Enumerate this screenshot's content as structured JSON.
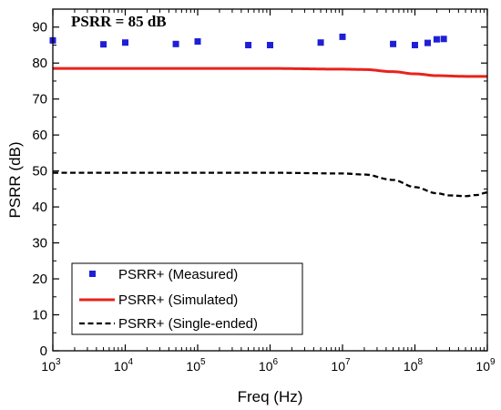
{
  "chart_data": {
    "type": "line",
    "xlabel": "Freq (Hz)",
    "ylabel": "PSRR (dB)",
    "xscale": "log",
    "xlim": [
      1000,
      1000000000
    ],
    "ylim": [
      0,
      95
    ],
    "x_ticks": [
      {
        "value": 1000,
        "base": "10",
        "exp": "3"
      },
      {
        "value": 10000,
        "base": "10",
        "exp": "4"
      },
      {
        "value": 100000,
        "base": "10",
        "exp": "5"
      },
      {
        "value": 1000000,
        "base": "10",
        "exp": "6"
      },
      {
        "value": 10000000,
        "base": "10",
        "exp": "7"
      },
      {
        "value": 100000000,
        "base": "10",
        "exp": "8"
      },
      {
        "value": 1000000000,
        "base": "10",
        "exp": "9"
      }
    ],
    "y_ticks": [
      {
        "value": 0,
        "label": "0"
      },
      {
        "value": 10,
        "label": "10"
      },
      {
        "value": 20,
        "label": "20"
      },
      {
        "value": 30,
        "label": "30"
      },
      {
        "value": 40,
        "label": "40"
      },
      {
        "value": 50,
        "label": "50"
      },
      {
        "value": 60,
        "label": "60"
      },
      {
        "value": 70,
        "label": "70"
      },
      {
        "value": 80,
        "label": "80"
      },
      {
        "value": 90,
        "label": "90"
      }
    ],
    "annotation": "PSRR = 85 dB",
    "legend_position": "bottom-left",
    "series": [
      {
        "name": "PSRR+ (Measured)",
        "style": "markers",
        "marker": "square",
        "color": "#1f1fd6",
        "x": [
          1000,
          5000,
          10000,
          50000,
          100000,
          500000,
          1000000,
          5000000,
          10000000,
          50000000,
          100000000,
          150000000,
          200000000,
          250000000
        ],
        "y": [
          86.3,
          85.2,
          85.7,
          85.3,
          86.0,
          85.0,
          85.0,
          85.7,
          87.3,
          85.3,
          85.0,
          85.6,
          86.6,
          86.7
        ]
      },
      {
        "name": "PSRR+ (Simulated)",
        "style": "solid",
        "color": "#e8231c",
        "x": [
          1000,
          1000000,
          10000000,
          20000000,
          50000000,
          100000000,
          200000000,
          500000000,
          1000000000
        ],
        "y": [
          78.5,
          78.5,
          78.3,
          78.2,
          77.6,
          77.0,
          76.5,
          76.3,
          76.3
        ]
      },
      {
        "name": "PSRR+ (Single-ended)",
        "style": "dashed",
        "color": "#000000",
        "x": [
          1000,
          1000000,
          10000000,
          20000000,
          50000000,
          100000000,
          200000000,
          300000000,
          500000000,
          700000000,
          1000000000
        ],
        "y": [
          49.5,
          49.5,
          49.3,
          49.0,
          47.5,
          45.5,
          43.8,
          43.2,
          43.0,
          43.3,
          44.0
        ]
      }
    ]
  }
}
